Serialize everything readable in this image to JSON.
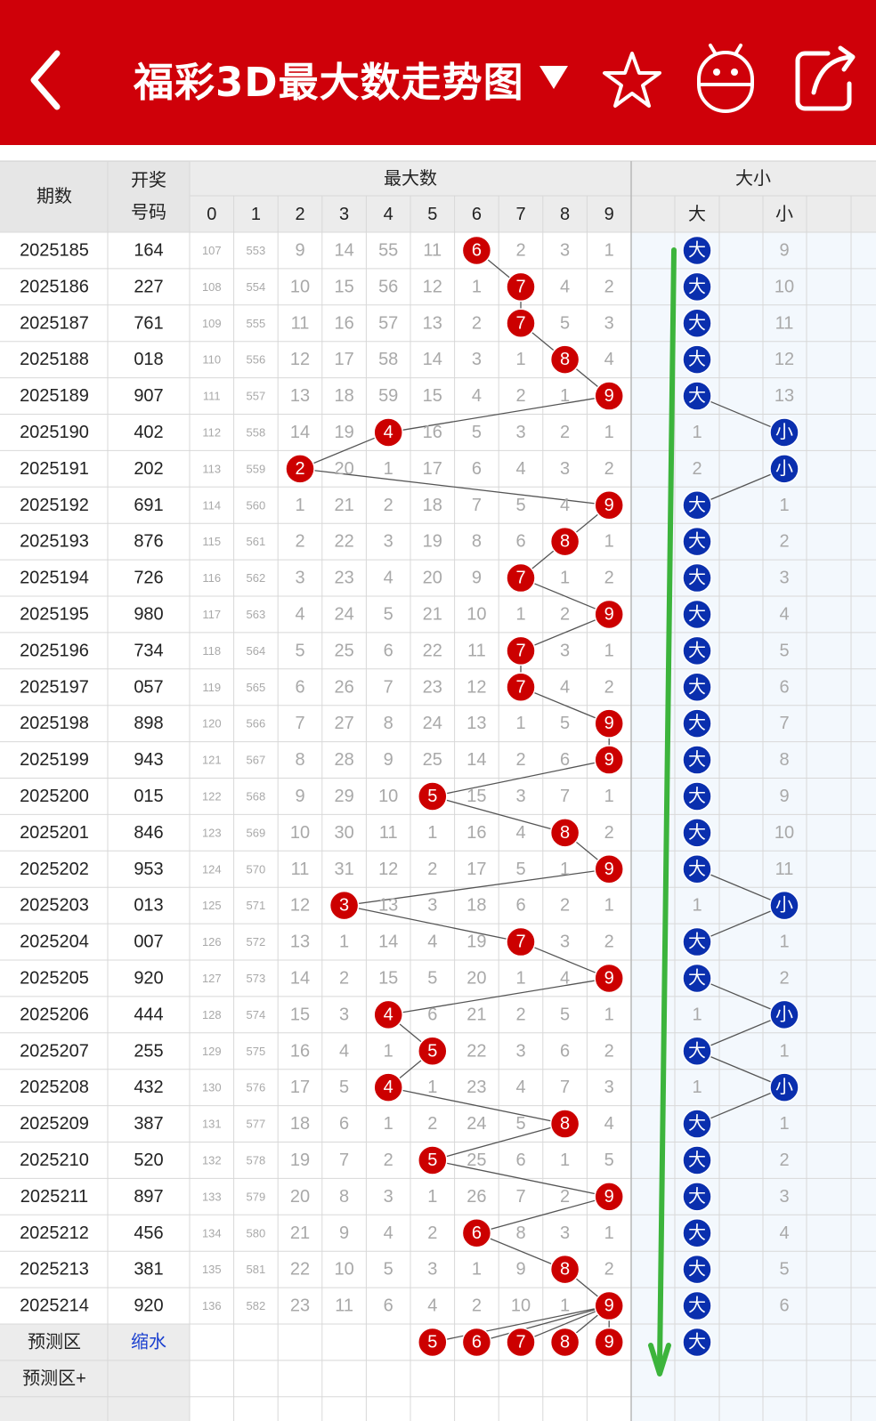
{
  "header": {
    "title": "福彩3D最大数走势图",
    "back_icon": "back-chevron-icon",
    "dropdown_icon": "triangle-down-icon",
    "star_icon": "star-icon",
    "robot_icon": "android-robot-icon",
    "share_icon": "share-icon",
    "background": "#cf0009"
  },
  "table": {
    "col_period": "期数",
    "col_draw_line1": "开奖",
    "col_draw_line2": "号码",
    "group_max": "最大数",
    "group_size": "大小",
    "digits": [
      "0",
      "1",
      "2",
      "3",
      "4",
      "5",
      "6",
      "7",
      "8",
      "9"
    ],
    "size_big": "大",
    "size_small": "小",
    "rows": [
      {
        "period": "2025185",
        "draw": "164",
        "max": 6,
        "miss": [
          107,
          553,
          9,
          14,
          55,
          11,
          null,
          2,
          3,
          1
        ],
        "size": "大",
        "small_miss": 9
      },
      {
        "period": "2025186",
        "draw": "227",
        "max": 7,
        "miss": [
          108,
          554,
          10,
          15,
          56,
          12,
          1,
          null,
          4,
          2
        ],
        "size": "大",
        "small_miss": 10
      },
      {
        "period": "2025187",
        "draw": "761",
        "max": 7,
        "miss": [
          109,
          555,
          11,
          16,
          57,
          13,
          2,
          null,
          5,
          3
        ],
        "size": "大",
        "small_miss": 11
      },
      {
        "period": "2025188",
        "draw": "018",
        "max": 8,
        "miss": [
          110,
          556,
          12,
          17,
          58,
          14,
          3,
          1,
          null,
          4
        ],
        "size": "大",
        "small_miss": 12
      },
      {
        "period": "2025189",
        "draw": "907",
        "max": 9,
        "miss": [
          111,
          557,
          13,
          18,
          59,
          15,
          4,
          2,
          1,
          null
        ],
        "size": "大",
        "small_miss": 13
      },
      {
        "period": "2025190",
        "draw": "402",
        "max": 4,
        "miss": [
          112,
          558,
          14,
          19,
          null,
          16,
          5,
          3,
          2,
          1
        ],
        "size": "小",
        "big_miss": 1
      },
      {
        "period": "2025191",
        "draw": "202",
        "max": 2,
        "miss": [
          113,
          559,
          null,
          20,
          1,
          17,
          6,
          4,
          3,
          2
        ],
        "size": "小",
        "big_miss": 2
      },
      {
        "period": "2025192",
        "draw": "691",
        "max": 9,
        "miss": [
          114,
          560,
          1,
          21,
          2,
          18,
          7,
          5,
          4,
          null
        ],
        "size": "大",
        "small_miss": 1
      },
      {
        "period": "2025193",
        "draw": "876",
        "max": 8,
        "miss": [
          115,
          561,
          2,
          22,
          3,
          19,
          8,
          6,
          null,
          1
        ],
        "size": "大",
        "small_miss": 2
      },
      {
        "period": "2025194",
        "draw": "726",
        "max": 7,
        "miss": [
          116,
          562,
          3,
          23,
          4,
          20,
          9,
          null,
          1,
          2
        ],
        "size": "大",
        "small_miss": 3
      },
      {
        "period": "2025195",
        "draw": "980",
        "max": 9,
        "miss": [
          117,
          563,
          4,
          24,
          5,
          21,
          10,
          1,
          2,
          null
        ],
        "size": "大",
        "small_miss": 4
      },
      {
        "period": "2025196",
        "draw": "734",
        "max": 7,
        "miss": [
          118,
          564,
          5,
          25,
          6,
          22,
          11,
          null,
          3,
          1
        ],
        "size": "大",
        "small_miss": 5
      },
      {
        "period": "2025197",
        "draw": "057",
        "max": 7,
        "miss": [
          119,
          565,
          6,
          26,
          7,
          23,
          12,
          null,
          4,
          2
        ],
        "size": "大",
        "small_miss": 6
      },
      {
        "period": "2025198",
        "draw": "898",
        "max": 9,
        "miss": [
          120,
          566,
          7,
          27,
          8,
          24,
          13,
          1,
          5,
          null
        ],
        "size": "大",
        "small_miss": 7
      },
      {
        "period": "2025199",
        "draw": "943",
        "max": 9,
        "miss": [
          121,
          567,
          8,
          28,
          9,
          25,
          14,
          2,
          6,
          null
        ],
        "size": "大",
        "small_miss": 8
      },
      {
        "period": "2025200",
        "draw": "015",
        "max": 5,
        "miss": [
          122,
          568,
          9,
          29,
          10,
          null,
          15,
          3,
          7,
          1
        ],
        "size": "大",
        "small_miss": 9
      },
      {
        "period": "2025201",
        "draw": "846",
        "max": 8,
        "miss": [
          123,
          569,
          10,
          30,
          11,
          1,
          16,
          4,
          null,
          2
        ],
        "size": "大",
        "small_miss": 10
      },
      {
        "period": "2025202",
        "draw": "953",
        "max": 9,
        "miss": [
          124,
          570,
          11,
          31,
          12,
          2,
          17,
          5,
          1,
          null
        ],
        "size": "大",
        "small_miss": 11
      },
      {
        "period": "2025203",
        "draw": "013",
        "max": 3,
        "miss": [
          125,
          571,
          12,
          null,
          13,
          3,
          18,
          6,
          2,
          1
        ],
        "size": "小",
        "big_miss": 1
      },
      {
        "period": "2025204",
        "draw": "007",
        "max": 7,
        "miss": [
          126,
          572,
          13,
          1,
          14,
          4,
          19,
          null,
          3,
          2
        ],
        "size": "大",
        "small_miss": 1
      },
      {
        "period": "2025205",
        "draw": "920",
        "max": 9,
        "miss": [
          127,
          573,
          14,
          2,
          15,
          5,
          20,
          1,
          4,
          null
        ],
        "size": "大",
        "small_miss": 2
      },
      {
        "period": "2025206",
        "draw": "444",
        "max": 4,
        "miss": [
          128,
          574,
          15,
          3,
          null,
          6,
          21,
          2,
          5,
          1
        ],
        "size": "小",
        "big_miss": 1
      },
      {
        "period": "2025207",
        "draw": "255",
        "max": 5,
        "miss": [
          129,
          575,
          16,
          4,
          1,
          null,
          22,
          3,
          6,
          2
        ],
        "size": "大",
        "small_miss": 1
      },
      {
        "period": "2025208",
        "draw": "432",
        "max": 4,
        "miss": [
          130,
          576,
          17,
          5,
          null,
          1,
          23,
          4,
          7,
          3
        ],
        "size": "小",
        "big_miss": 1
      },
      {
        "period": "2025209",
        "draw": "387",
        "max": 8,
        "miss": [
          131,
          577,
          18,
          6,
          1,
          2,
          24,
          5,
          null,
          4
        ],
        "size": "大",
        "small_miss": 1
      },
      {
        "period": "2025210",
        "draw": "520",
        "max": 5,
        "miss": [
          132,
          578,
          19,
          7,
          2,
          null,
          25,
          6,
          1,
          5
        ],
        "size": "大",
        "small_miss": 2
      },
      {
        "period": "2025211",
        "draw": "897",
        "max": 9,
        "miss": [
          133,
          579,
          20,
          8,
          3,
          1,
          26,
          7,
          2,
          null
        ],
        "size": "大",
        "small_miss": 3
      },
      {
        "period": "2025212",
        "draw": "456",
        "max": 6,
        "miss": [
          134,
          580,
          21,
          9,
          4,
          2,
          null,
          8,
          3,
          1
        ],
        "size": "大",
        "small_miss": 4
      },
      {
        "period": "2025213",
        "draw": "381",
        "max": 8,
        "miss": [
          135,
          581,
          22,
          10,
          5,
          3,
          1,
          9,
          null,
          2
        ],
        "size": "大",
        "small_miss": 5
      },
      {
        "period": "2025214",
        "draw": "920",
        "max": 9,
        "miss": [
          136,
          582,
          23,
          11,
          6,
          4,
          2,
          10,
          1,
          null
        ],
        "size": "大",
        "small_miss": 6
      }
    ],
    "predict_label": "预测区",
    "predict_link": "缩水",
    "predict_digits": [
      5,
      6,
      7,
      8,
      9
    ],
    "predict_size": "大",
    "predict_plus_label": "预测区+"
  },
  "annotation": {
    "arrow_color": "#3cb43c",
    "ball_red": "#cc0000",
    "ball_blue": "#0a2fae"
  }
}
